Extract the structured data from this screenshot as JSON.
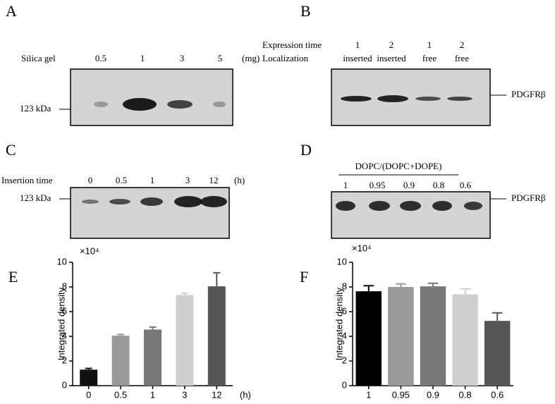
{
  "panels": {
    "A": {
      "letter": "A",
      "row_label": "Silica gel",
      "lanes": [
        "0.5",
        "1",
        "3",
        "5"
      ],
      "unit": "(mg)",
      "marker": "123 kDa"
    },
    "B": {
      "letter": "B",
      "row1_label": "Expression time",
      "row1": [
        "1",
        "2",
        "1",
        "2"
      ],
      "row2_label": "Localization",
      "row2": [
        "inserted",
        "inserted",
        "free",
        "free"
      ],
      "protein": "PDGFRβ"
    },
    "C": {
      "letter": "C",
      "row_label": "Insertion time",
      "lanes": [
        "0",
        "0.5",
        "1",
        "3",
        "12"
      ],
      "unit": "(h)",
      "marker": "123 kDa"
    },
    "D": {
      "letter": "D",
      "header": "DOPC/(DOPC+DOPE)",
      "lanes": [
        "1",
        "0.95",
        "0.9",
        "0.8",
        "0.6"
      ],
      "protein": "PDGFRβ"
    }
  },
  "chart_data": [
    {
      "type": "bar",
      "panel": "E",
      "multiplier": "×10⁴",
      "ylabel": "Integrated density",
      "xlabel": "(h)",
      "categories": [
        "0",
        "0.5",
        "1",
        "3",
        "12"
      ],
      "values": [
        1.3,
        4.05,
        4.55,
        7.35,
        8.05
      ],
      "errors": [
        0.1,
        0.1,
        0.2,
        0.15,
        1.1
      ],
      "colors": [
        "#111111",
        "#9a9a9a",
        "#777777",
        "#cfcfcf",
        "#555555"
      ],
      "ylim": [
        0,
        10
      ],
      "yticks": [
        0,
        2,
        4,
        6,
        8,
        10
      ]
    },
    {
      "type": "bar",
      "panel": "F",
      "multiplier": "×10⁴",
      "ylabel": "Integrated density",
      "categories": [
        "1",
        "0.95",
        "0.9",
        "0.8",
        "0.6"
      ],
      "values": [
        7.65,
        8.0,
        8.05,
        7.4,
        5.25
      ],
      "errors": [
        0.45,
        0.25,
        0.25,
        0.45,
        0.65
      ],
      "colors": [
        "#000000",
        "#9a9a9a",
        "#777777",
        "#cfcfcf",
        "#555555"
      ],
      "ylim": [
        0,
        10
      ],
      "yticks": [
        0,
        2,
        4,
        6,
        8,
        10
      ]
    }
  ]
}
